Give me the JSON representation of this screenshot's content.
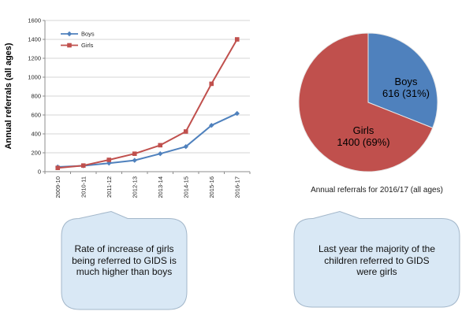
{
  "chart_data": [
    {
      "type": "line",
      "title": "",
      "ylabel": "Annual referrals (all ages)",
      "xlabel": "",
      "categories": [
        "2009-10",
        "2010-11",
        "2011-12",
        "2012-13",
        "2013-14",
        "2014-15",
        "2015-16",
        "2016-17"
      ],
      "series": [
        {
          "name": "Boys",
          "color": "#4F81BD",
          "marker": "diamond",
          "values": [
            50,
            62,
            90,
            120,
            190,
            265,
            490,
            616
          ]
        },
        {
          "name": "Girls",
          "color": "#C0504D",
          "marker": "square",
          "values": [
            40,
            65,
            125,
            190,
            280,
            425,
            930,
            1400
          ]
        }
      ],
      "ylim": [
        0,
        1600
      ],
      "ytick_step": 200,
      "grid": true,
      "legend_position": "top-left-inside",
      "axis_text_color": "#262626",
      "grid_color": "#d6d6d6",
      "axis_color": "#8c8c8c"
    },
    {
      "type": "pie",
      "caption": "Annual referrals for 2016/17 (all ages)",
      "start_at_top": true,
      "clockwise": true,
      "slices": [
        {
          "label": "Boys",
          "value": 616,
          "pct": 31,
          "color": "#4F81BD",
          "label_line1": "Boys",
          "label_line2": "616 (31%)"
        },
        {
          "label": "Girls",
          "value": 1400,
          "pct": 69,
          "color": "#C0504D",
          "label_line1": "Girls",
          "label_line2": "1400 (69%)"
        }
      ]
    }
  ],
  "callouts": {
    "left": {
      "fill": "#d9e8f5",
      "border": "#a3b7ca",
      "lines": [
        "Rate of increase of girls",
        "being referred to GIDS is",
        "much higher than boys"
      ]
    },
    "right": {
      "fill": "#d9e8f5",
      "border": "#a3b7ca",
      "lines": [
        "Last year the majority of the",
        "children referred to GIDS",
        "were girls"
      ]
    }
  }
}
